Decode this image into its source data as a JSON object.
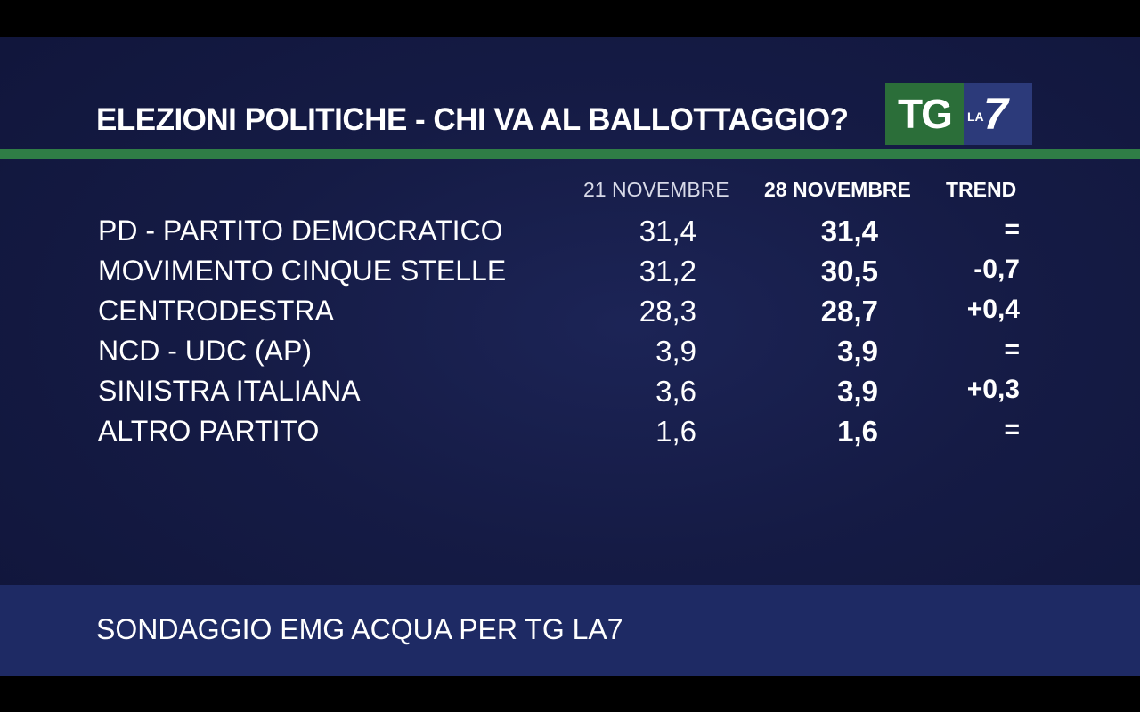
{
  "title": "ELEZIONI POLITICHE - CHI VA AL BALLOTTAGGIO?",
  "logo": {
    "tg": "TG",
    "la": "LA",
    "seven": "7"
  },
  "colors": {
    "background": "#151b45",
    "accent_green": "#2f7d46",
    "footer": "#1e2a64",
    "logo_green": "#2b6e39",
    "logo_blue": "#2c3a7a"
  },
  "chart_data": {
    "type": "table",
    "title": "ELEZIONI POLITICHE - CHI VA AL BALLOTTAGGIO?",
    "columns": [
      "21 NOVEMBRE",
      "28 NOVEMBRE",
      "TREND"
    ],
    "rows": [
      {
        "party": "PD - PARTITO DEMOCRATICO",
        "nov21": "31,4",
        "nov28": "31,4",
        "trend": "="
      },
      {
        "party": "MOVIMENTO CINQUE STELLE",
        "nov21": "31,2",
        "nov28": "30,5",
        "trend": "-0,7"
      },
      {
        "party": "CENTRODESTRA",
        "nov21": "28,3",
        "nov28": "28,7",
        "trend": "+0,4"
      },
      {
        "party": "NCD - UDC (AP)",
        "nov21": "3,9",
        "nov28": "3,9",
        "trend": "="
      },
      {
        "party": "SINISTRA ITALIANA",
        "nov21": "3,6",
        "nov28": "3,9",
        "trend": "+0,3"
      },
      {
        "party": "ALTRO PARTITO",
        "nov21": "1,6",
        "nov28": "1,6",
        "trend": "="
      }
    ]
  },
  "footer": {
    "text": "SONDAGGIO EMG ACQUA PER TG LA7"
  }
}
